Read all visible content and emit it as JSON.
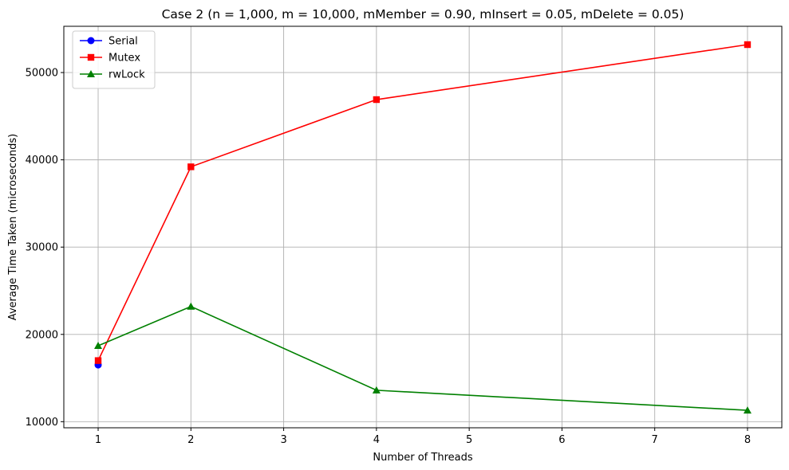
{
  "chart_data": {
    "type": "line",
    "title": "Case 2 (n = 1,000, m = 10,000, mMember = 0.90, mInsert = 0.05, mDelete = 0.05)",
    "xlabel": "Number of Threads",
    "ylabel": "Average Time Taken (microseconds)",
    "xlim": [
      0.63,
      8.37
    ],
    "ylim": [
      9300,
      55300
    ],
    "xticks": [
      1,
      2,
      3,
      4,
      5,
      6,
      7,
      8
    ],
    "yticks": [
      10000,
      20000,
      30000,
      40000,
      50000
    ],
    "grid": true,
    "legend_position": "top-left",
    "series": [
      {
        "name": "Serial",
        "color": "#0000ff",
        "marker": "circle",
        "x": [
          1
        ],
        "y": [
          16500
        ]
      },
      {
        "name": "Mutex",
        "color": "#ff0000",
        "marker": "square",
        "x": [
          1,
          2,
          4,
          8
        ],
        "y": [
          17000,
          39200,
          46900,
          53200
        ]
      },
      {
        "name": "rwLock",
        "color": "#008000",
        "marker": "triangle",
        "x": [
          1,
          2,
          4,
          8
        ],
        "y": [
          18700,
          23200,
          13600,
          11300
        ]
      }
    ]
  }
}
